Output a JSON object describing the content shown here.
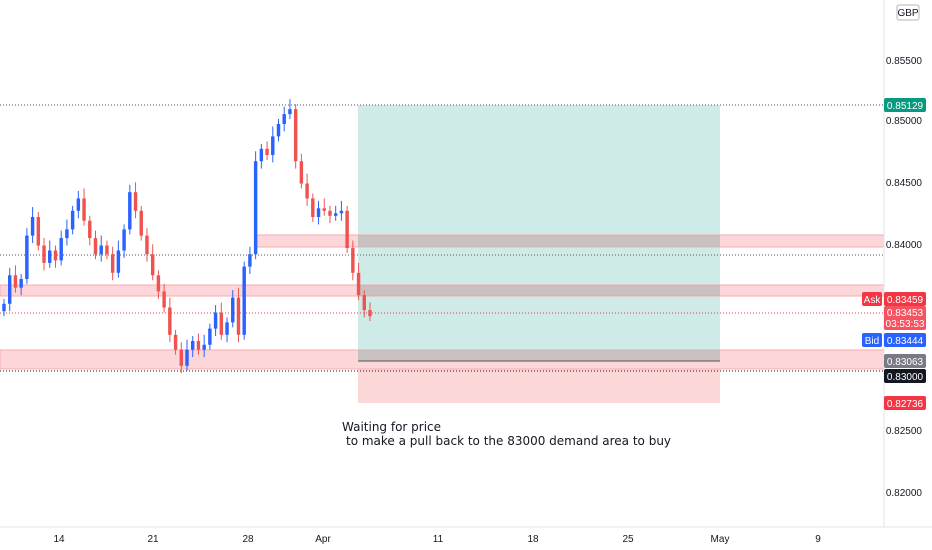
{
  "currency_badge": "GBP",
  "x_axis": {
    "labels": [
      "14",
      "21",
      "28",
      "Apr",
      "11",
      "18",
      "25",
      "May",
      "9"
    ]
  },
  "y_axis": {
    "labels": [
      "0.85500",
      "0.85000",
      "0.84500",
      "0.84000",
      "0.82500",
      "0.82000"
    ]
  },
  "price_tags": {
    "top": {
      "value": "0.85129",
      "color": "#089981"
    },
    "ask": {
      "label": "Ask",
      "value": "0.83459",
      "color": "#f23645"
    },
    "last": {
      "value": "0.83453",
      "timer": "03:53:53",
      "color": "#f23645"
    },
    "bid": {
      "label": "Bid",
      "value": "0.83444",
      "color": "#2962ff"
    },
    "gray": {
      "value": "0.83063",
      "color": "#787b86"
    },
    "black": {
      "value": "0.83000",
      "color": "#131722"
    },
    "stop": {
      "value": "0.82736",
      "color": "#f23645"
    }
  },
  "annotation": {
    "line1": "Waiting for price",
    "line2": "to make a pull back to the 83000 demand area to buy"
  },
  "colors": {
    "up": "#2962ff",
    "down": "#ef5350",
    "profit_zone": "#c6e8e4",
    "loss_zone": "#fbd3d3",
    "zone_fill": "#fcd6d8",
    "zone_border": "#f7a9ad"
  },
  "chart_data": {
    "type": "candlestick",
    "y_range": [
      0.8175,
      0.86
    ],
    "x_ticks": [
      "14",
      "21",
      "28",
      "Apr",
      "11",
      "18",
      "25",
      "May",
      "9"
    ],
    "series": [
      {
        "values": [
          0.8355,
          0.8378,
          0.8368,
          0.8375,
          0.841,
          0.8425,
          0.8402,
          0.8388,
          0.8398,
          0.839,
          0.8408,
          0.8415,
          0.843,
          0.844,
          0.8422,
          0.8408,
          0.8395,
          0.8402,
          0.8395,
          0.838,
          0.8398,
          0.8415,
          0.8445,
          0.843,
          0.841,
          0.8395,
          0.8378,
          0.8365,
          0.8352,
          0.833,
          0.8318,
          0.8305,
          0.8318,
          0.8325,
          0.8318,
          0.8322,
          0.8335,
          0.8348,
          0.833,
          0.834,
          0.836,
          0.833,
          0.8385,
          0.8395,
          0.847,
          0.848,
          0.8475,
          0.849,
          0.85,
          0.8508,
          0.8512,
          0.847,
          0.8452,
          0.844,
          0.8425,
          0.8432,
          0.843,
          0.8426,
          0.8428,
          0.843,
          0.84,
          0.838,
          0.8362,
          0.835,
          0.8345
        ]
      }
    ],
    "trade_setup": {
      "entry": 0.8306,
      "target": 0.85129,
      "stop": 0.82736
    },
    "zones": [
      {
        "from": 0.8398,
        "to": 0.8405
      },
      {
        "from": 0.8355,
        "to": 0.8363
      },
      {
        "from": 0.8296,
        "to": 0.8307
      }
    ],
    "horizontal_levels": [
      0.85129,
      0.83453,
      0.83,
      0.8393
    ]
  }
}
